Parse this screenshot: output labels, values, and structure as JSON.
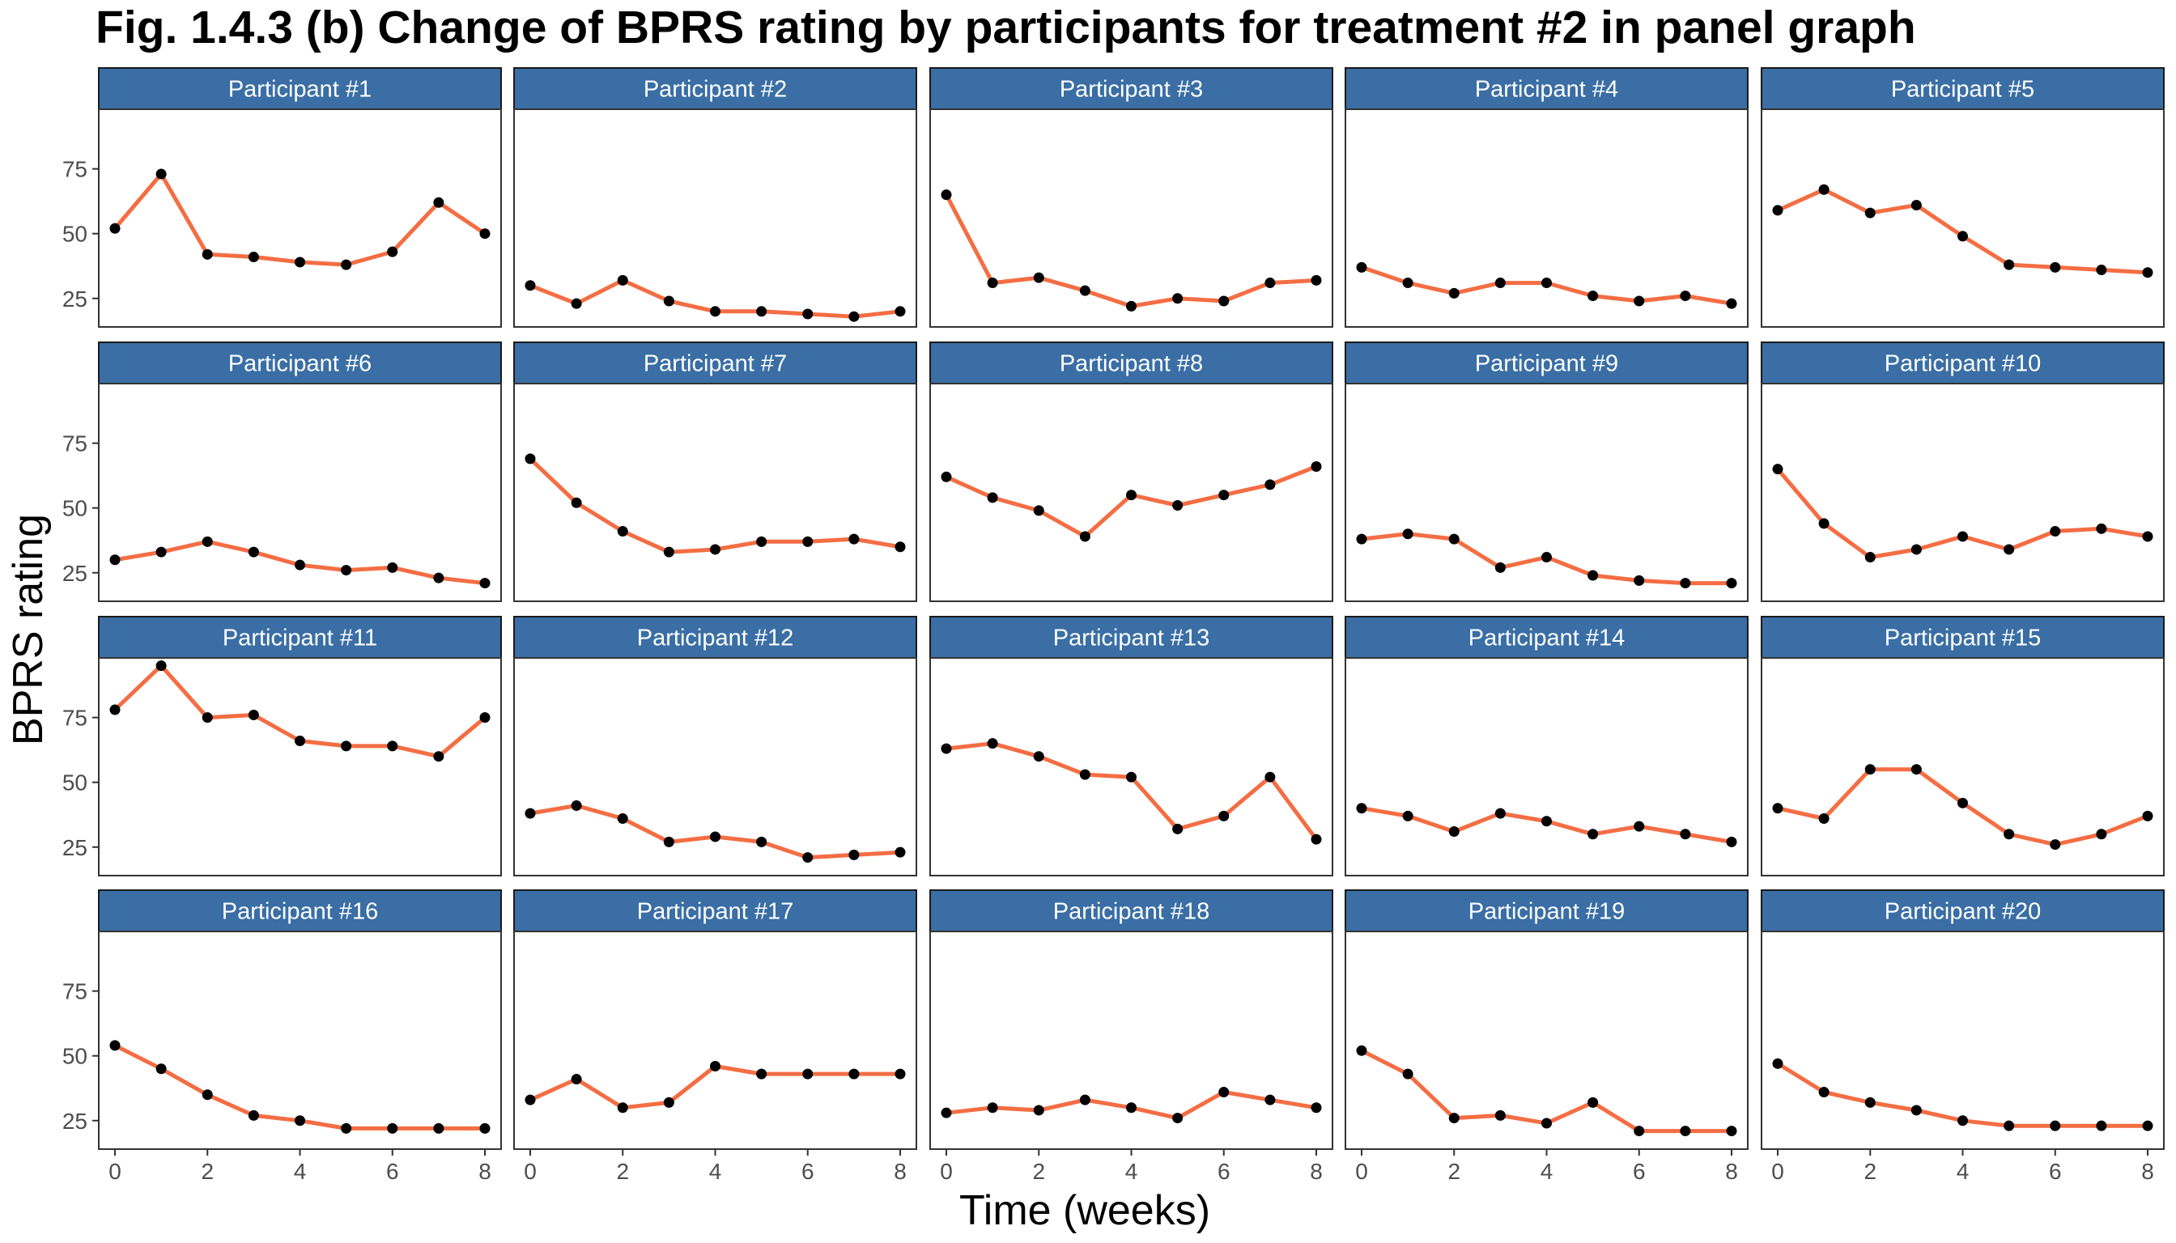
{
  "title": "Fig. 1.4.3 (b) Change of BPRS rating by participants for treatment #2 in panel graph",
  "colors": {
    "line": "#F46D43",
    "point": "#000000",
    "strip_fill": "#3A6EA5",
    "strip_text": "#FFFFFF",
    "panel_border": "#333333",
    "tick_label": "#4D4D4D"
  },
  "chart_data": {
    "type": "line",
    "facet_layout": "4 rows x 5 columns",
    "xlabel": "Time (weeks)",
    "ylabel": "BPRS rating",
    "x": [
      0,
      1,
      2,
      3,
      4,
      5,
      6,
      7,
      8
    ],
    "xticks": [
      0,
      2,
      4,
      6,
      8
    ],
    "yticks": [
      25,
      50,
      75
    ],
    "xlim": [
      -0.35,
      8.35
    ],
    "ylim": [
      14,
      98
    ],
    "grid": false,
    "legend": "none",
    "series": [
      {
        "name": "Participant #1",
        "values": [
          52,
          73,
          42,
          41,
          39,
          38,
          43,
          62,
          50
        ]
      },
      {
        "name": "Participant #2",
        "values": [
          30,
          23,
          32,
          24,
          20,
          20,
          19,
          18,
          20
        ]
      },
      {
        "name": "Participant #3",
        "values": [
          65,
          31,
          33,
          28,
          22,
          25,
          24,
          31,
          32
        ]
      },
      {
        "name": "Participant #4",
        "values": [
          37,
          31,
          27,
          31,
          31,
          26,
          24,
          26,
          23
        ]
      },
      {
        "name": "Participant #5",
        "values": [
          59,
          67,
          58,
          61,
          49,
          38,
          37,
          36,
          35
        ]
      },
      {
        "name": "Participant #6",
        "values": [
          30,
          33,
          37,
          33,
          28,
          26,
          27,
          23,
          21
        ]
      },
      {
        "name": "Participant #7",
        "values": [
          69,
          52,
          41,
          33,
          34,
          37,
          37,
          38,
          35
        ]
      },
      {
        "name": "Participant #8",
        "values": [
          62,
          54,
          49,
          39,
          55,
          51,
          55,
          59,
          66
        ]
      },
      {
        "name": "Participant #9",
        "values": [
          38,
          40,
          38,
          27,
          31,
          24,
          22,
          21,
          21
        ]
      },
      {
        "name": "Participant #10",
        "values": [
          65,
          44,
          31,
          34,
          39,
          34,
          41,
          42,
          39
        ]
      },
      {
        "name": "Participant #11",
        "values": [
          78,
          95,
          75,
          76,
          66,
          64,
          64,
          60,
          75
        ]
      },
      {
        "name": "Participant #12",
        "values": [
          38,
          41,
          36,
          27,
          29,
          27,
          21,
          22,
          23
        ]
      },
      {
        "name": "Participant #13",
        "values": [
          63,
          65,
          60,
          53,
          52,
          32,
          37,
          52,
          28
        ]
      },
      {
        "name": "Participant #14",
        "values": [
          40,
          37,
          31,
          38,
          35,
          30,
          33,
          30,
          27
        ]
      },
      {
        "name": "Participant #15",
        "values": [
          40,
          36,
          55,
          55,
          42,
          30,
          26,
          30,
          37
        ]
      },
      {
        "name": "Participant #16",
        "values": [
          54,
          45,
          35,
          27,
          25,
          22,
          22,
          22,
          22
        ]
      },
      {
        "name": "Participant #17",
        "values": [
          33,
          41,
          30,
          32,
          46,
          43,
          43,
          43,
          43
        ]
      },
      {
        "name": "Participant #18",
        "values": [
          28,
          30,
          29,
          33,
          30,
          26,
          36,
          33,
          30
        ]
      },
      {
        "name": "Participant #19",
        "values": [
          52,
          43,
          26,
          27,
          24,
          32,
          21,
          21,
          21
        ]
      },
      {
        "name": "Participant #20",
        "values": [
          47,
          36,
          32,
          29,
          25,
          23,
          23,
          23,
          23
        ]
      }
    ]
  }
}
